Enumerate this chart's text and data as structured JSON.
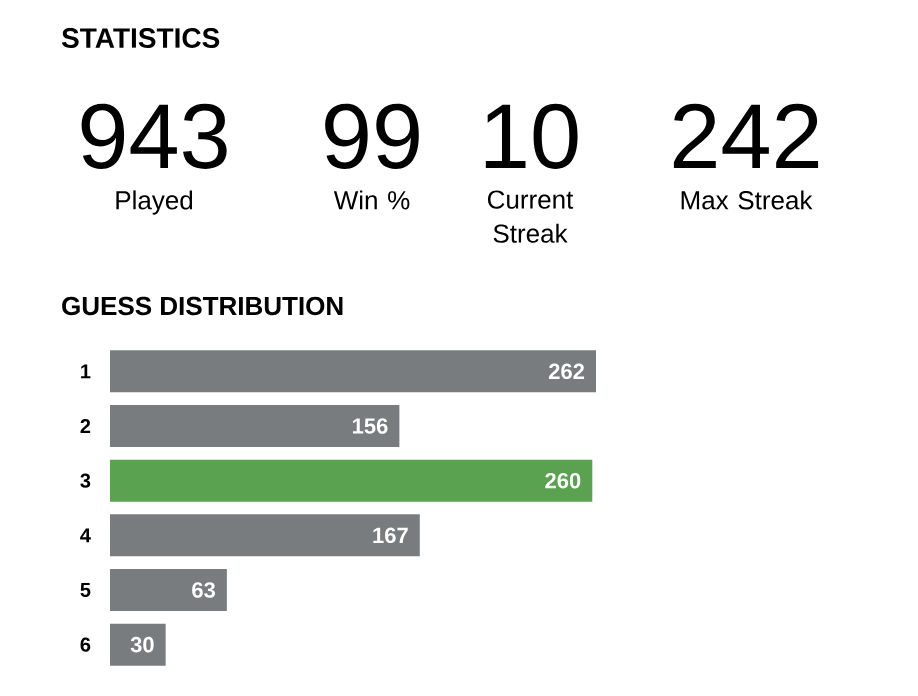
{
  "chart_data": [
    {
      "type": "other",
      "title": "STATISTICS",
      "categories": [
        "Played",
        "Win %",
        "Current Streak",
        "Max Streak"
      ],
      "values": [
        943,
        99,
        10,
        242
      ],
      "data_labels": true
    },
    {
      "type": "bar",
      "title": "GUESS DISTRIBUTION",
      "orientation": "horizontal",
      "categories": [
        "1",
        "2",
        "3",
        "4",
        "5",
        "6"
      ],
      "values": [
        262,
        156,
        260,
        167,
        63,
        30
      ],
      "colors": [
        "#787c7e",
        "#787c7e",
        "#5aa150",
        "#787c7e",
        "#787c7e",
        "#787c7e"
      ],
      "data_labels": true
    }
  ]
}
